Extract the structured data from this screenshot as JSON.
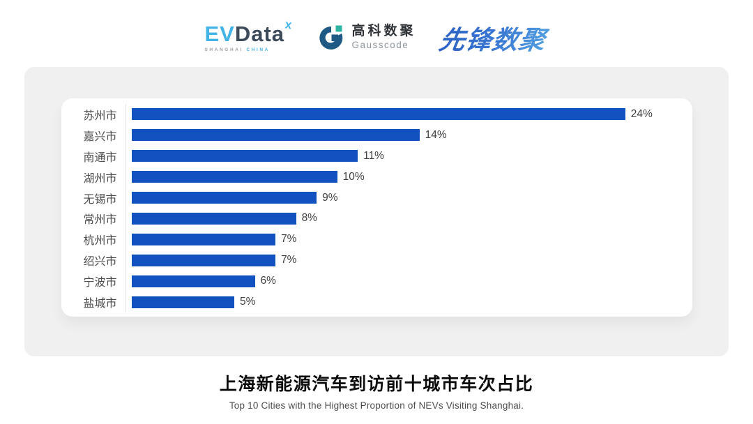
{
  "header": {
    "evdata": {
      "part1": "EV",
      "part2": "Data",
      "sup_mark": "x",
      "sub_left": "SHANGHAI",
      "sub_right": "CHINA"
    },
    "gausscode": {
      "name_cn": "高科数聚",
      "name_en": "Gausscode",
      "icon_dark_blue": "#1f5a85",
      "icon_teal": "#2bb5a0"
    },
    "pioneer": {
      "text": "先锋数聚",
      "color": "#2f6cc8"
    }
  },
  "chart_data": {
    "type": "bar",
    "orientation": "horizontal",
    "categories": [
      "苏州市",
      "嘉兴市",
      "南通市",
      "湖州市",
      "无锡市",
      "常州市",
      "杭州市",
      "绍兴市",
      "宁波市",
      "盐城市"
    ],
    "values": [
      24,
      14,
      11,
      10,
      9,
      8,
      7,
      7,
      6,
      5
    ],
    "unit": "%",
    "bar_color": "#1151c0",
    "xlim": [
      0,
      26.5
    ],
    "grid": false,
    "legend": "none",
    "title": "上海新能源汽车到访前十城市车次占比",
    "subtitle": "Top 10 Cities with the Highest Proportion of  NEVs Visiting Shanghai."
  },
  "footer": {
    "title": "上海新能源汽车到访前十城市车次占比",
    "subtitle": "Top 10 Cities with the Highest Proportion of  NEVs Visiting Shanghai."
  }
}
